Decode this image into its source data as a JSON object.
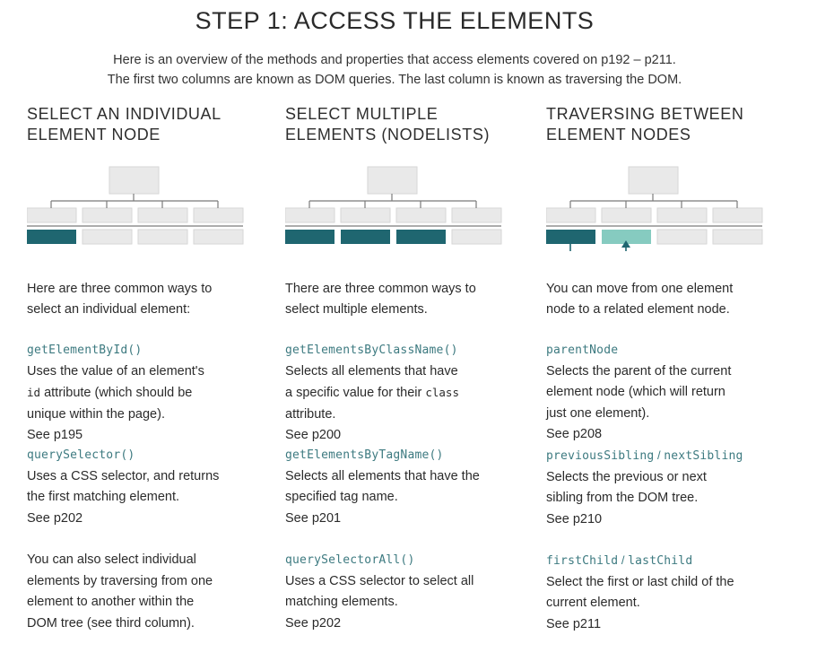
{
  "title": "STEP 1: ACCESS THE ELEMENTS",
  "intro": {
    "line1": "Here is an overview of the methods and properties that access elements covered on p192 – p211.",
    "line2": "The first two columns are known as DOM queries. The last column is known as traversing the DOM."
  },
  "colors": {
    "teal": "#1f6670",
    "light_teal": "#86cbc0",
    "code": "#3d7a80"
  },
  "columns": [
    {
      "head1": "SELECT AN INDIVIDUAL",
      "head2": "ELEMENT NODE",
      "desc1": "Here are three common ways to",
      "desc2": "select an individual element:",
      "entries": [
        {
          "code": "getElementById()",
          "l1": "Uses the value of an element's",
          "l2a": "id",
          "l2b": " attribute (which should be",
          "l3": "unique within the page).",
          "see": "See p195"
        },
        {
          "code": "querySelector()",
          "l1": "Uses a CSS selector, and returns",
          "l2": "the first matching element.",
          "see": "See p202"
        },
        {
          "l1": "You can also select individual",
          "l2": "elements by traversing from one",
          "l3": "element to another within the",
          "l4": "DOM tree (see third column)."
        }
      ]
    },
    {
      "head1": "SELECT MULTIPLE",
      "head2": "ELEMENTS (NODELISTS)",
      "desc1": "There are three common ways to",
      "desc2": "select multiple elements.",
      "entries": [
        {
          "code": "getElementsByClassName()",
          "l1": "Selects all elements that have",
          "l2a": "a specific value for their ",
          "l2b": "class",
          "l3": "attribute.",
          "see": "See p200"
        },
        {
          "code": "getElementsByTagName()",
          "l1": "Selects all elements that have the",
          "l2": "specified tag name.",
          "see": "See p201"
        },
        {
          "code": "querySelectorAll()",
          "l1": "Uses a CSS selector to select all",
          "l2": "matching elements.",
          "see": "See p202"
        }
      ]
    },
    {
      "head1": "TRAVERSING BETWEEN",
      "head2": "ELEMENT NODES",
      "desc1": "You can move from one element",
      "desc2": "node to a related element node.",
      "entries": [
        {
          "code": "parentNode",
          "l1": "Selects the parent of the current",
          "l2": "element node (which will return",
          "l3": "just one element).",
          "see": "See p208"
        },
        {
          "code_a": "previousSibling",
          "sep": " / ",
          "code_b": "nextSibling",
          "l1": "Selects the previous or next",
          "l2": "sibling from the DOM tree.",
          "see": "See p210"
        },
        {
          "code_a": "firstChild",
          "sep": " / ",
          "code_b": "lastChild",
          "l1": "Select the first or last child of the",
          "l2": "current element.",
          "see": "See p211"
        }
      ]
    }
  ]
}
